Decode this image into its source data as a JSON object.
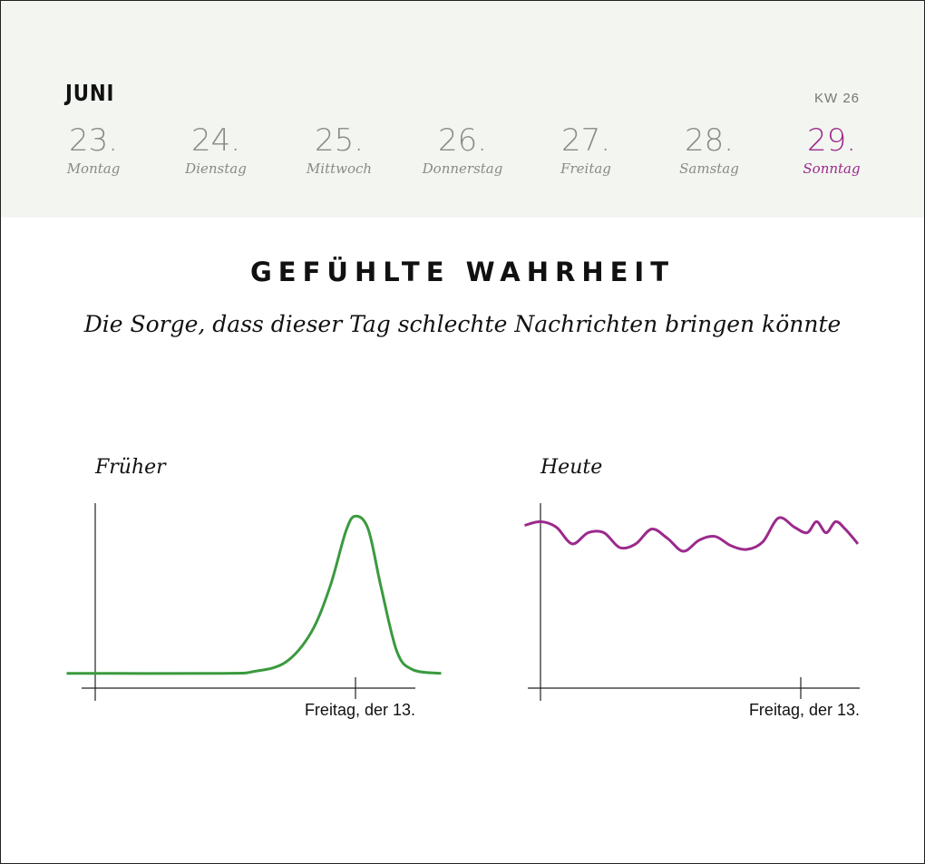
{
  "calendar": {
    "month": "JUNI",
    "week": "KW 26",
    "days": [
      {
        "num": "23.",
        "name": "Montag"
      },
      {
        "num": "24.",
        "name": "Dienstag"
      },
      {
        "num": "25.",
        "name": "Mittwoch"
      },
      {
        "num": "26.",
        "name": "Donnerstag"
      },
      {
        "num": "27.",
        "name": "Freitag"
      },
      {
        "num": "28.",
        "name": "Samstag"
      },
      {
        "num": "29.",
        "name": "Sonntag"
      }
    ],
    "highlight_color": "#9b2a8c"
  },
  "title": "GEFÜHLTE WAHRHEIT",
  "subtitle": "Die Sorge, dass dieser Tag schlechte Nachrichten bringen könnte",
  "chart_data": [
    {
      "type": "line",
      "title": "Früher",
      "color": "#3a9a3e",
      "x_tick_label": "Freitag, der 13.",
      "x_tick_value": 0.82,
      "xlim": [
        -0.09,
        1.09
      ],
      "ylim": [
        0,
        1
      ],
      "x": [
        -0.09,
        0.4,
        0.5,
        0.6,
        0.68,
        0.74,
        0.79,
        0.82,
        0.86,
        0.9,
        0.95,
        1.0,
        1.09
      ],
      "y": [
        0.08,
        0.08,
        0.09,
        0.14,
        0.3,
        0.55,
        0.85,
        0.93,
        0.86,
        0.55,
        0.2,
        0.1,
        0.08
      ]
    },
    {
      "type": "line",
      "title": "Heute",
      "color": "#9b2a8c",
      "x_tick_label": "Freitag, der 13.",
      "x_tick_value": 0.82,
      "xlim": [
        -0.05,
        1.0
      ],
      "ylim": [
        0,
        1
      ],
      "x": [
        -0.05,
        0.0,
        0.05,
        0.1,
        0.15,
        0.2,
        0.25,
        0.3,
        0.35,
        0.4,
        0.45,
        0.5,
        0.55,
        0.6,
        0.65,
        0.7,
        0.75,
        0.8,
        0.84,
        0.87,
        0.9,
        0.93,
        0.96,
        1.0
      ],
      "y": [
        0.88,
        0.9,
        0.87,
        0.78,
        0.84,
        0.84,
        0.76,
        0.78,
        0.86,
        0.81,
        0.74,
        0.8,
        0.82,
        0.77,
        0.75,
        0.79,
        0.92,
        0.87,
        0.84,
        0.9,
        0.84,
        0.9,
        0.86,
        0.78
      ]
    }
  ]
}
